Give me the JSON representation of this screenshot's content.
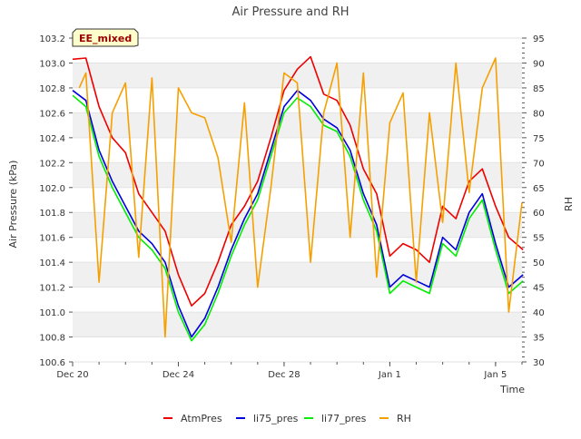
{
  "chart_data": {
    "type": "line",
    "title": "Air Pressure and RH",
    "xlabel": "Time",
    "ylabel": "Air Pressure (kPa)",
    "y2label": "RH",
    "annotation": "EE_mixed",
    "x_unit": "day",
    "x_ticks": [
      {
        "label": "Dec 20",
        "value": "2023-12-20"
      },
      {
        "label": "Dec 24",
        "value": "2023-12-24"
      },
      {
        "label": "Dec 28",
        "value": "2023-12-28"
      },
      {
        "label": "Jan 1",
        "value": "2024-01-01"
      },
      {
        "label": "Jan 5",
        "value": "2024-01-05"
      }
    ],
    "xlim": [
      "2023-12-20",
      "2024-01-06"
    ],
    "ylim": [
      100.6,
      103.2
    ],
    "y_ticks": [
      100.6,
      100.8,
      101.0,
      101.2,
      101.4,
      101.6,
      101.8,
      102.0,
      102.2,
      102.4,
      102.6,
      102.8,
      103.0,
      103.2
    ],
    "y2lim": [
      30,
      95
    ],
    "y2_ticks": [
      30,
      35,
      40,
      45,
      50,
      55,
      60,
      65,
      70,
      75,
      80,
      85,
      90,
      95
    ],
    "grid_bands": true,
    "legend_placement": "bottom-center",
    "series": [
      {
        "name": "AtmPres",
        "color": "#ee0000",
        "axis": "left",
        "x": [
          "2023-12-20",
          "2023-12-20T12:00",
          "2023-12-21",
          "2023-12-21T12:00",
          "2023-12-22",
          "2023-12-22T12:00",
          "2023-12-23",
          "2023-12-23T12:00",
          "2023-12-24",
          "2023-12-24T12:00",
          "2023-12-25",
          "2023-12-25T12:00",
          "2023-12-26",
          "2023-12-26T12:00",
          "2023-12-27",
          "2023-12-27T12:00",
          "2023-12-28",
          "2023-12-28T12:00",
          "2023-12-29",
          "2023-12-29T12:00",
          "2023-12-30",
          "2023-12-30T12:00",
          "2023-12-31",
          "2023-12-31T12:00",
          "2024-01-01",
          "2024-01-01T12:00",
          "2024-01-02",
          "2024-01-02T12:00",
          "2024-01-03",
          "2024-01-03T12:00",
          "2024-01-04",
          "2024-01-04T12:00",
          "2024-01-05",
          "2024-01-05T12:00",
          "2024-01-06T01:00"
        ],
        "y": [
          103.03,
          103.04,
          102.65,
          102.4,
          102.28,
          101.95,
          101.8,
          101.65,
          101.3,
          101.05,
          101.15,
          101.4,
          101.7,
          101.85,
          102.05,
          102.4,
          102.78,
          102.95,
          103.05,
          102.75,
          102.7,
          102.5,
          102.15,
          101.95,
          101.45,
          101.55,
          101.5,
          101.4,
          101.85,
          101.75,
          102.05,
          102.15,
          101.85,
          101.6,
          101.5
        ]
      },
      {
        "name": "li75_pres",
        "color": "#0000dd",
        "axis": "left",
        "x": [
          "2023-12-20",
          "2023-12-20T12:00",
          "2023-12-21",
          "2023-12-21T12:00",
          "2023-12-22",
          "2023-12-22T12:00",
          "2023-12-23",
          "2023-12-23T12:00",
          "2023-12-24",
          "2023-12-24T12:00",
          "2023-12-25",
          "2023-12-25T12:00",
          "2023-12-26",
          "2023-12-26T12:00",
          "2023-12-27",
          "2023-12-27T12:00",
          "2023-12-28",
          "2023-12-28T12:00",
          "2023-12-29",
          "2023-12-29T12:00",
          "2023-12-30",
          "2023-12-30T12:00",
          "2023-12-31",
          "2023-12-31T12:00",
          "2024-01-01",
          "2024-01-01T12:00",
          "2024-01-02",
          "2024-01-02T12:00",
          "2024-01-03",
          "2024-01-03T12:00",
          "2024-01-04",
          "2024-01-04T12:00",
          "2024-01-05",
          "2024-01-05T12:00",
          "2024-01-06T01:00"
        ],
        "y": [
          102.78,
          102.7,
          102.3,
          102.05,
          101.85,
          101.65,
          101.55,
          101.4,
          101.05,
          100.8,
          100.95,
          101.2,
          101.5,
          101.75,
          101.95,
          102.3,
          102.65,
          102.78,
          102.7,
          102.55,
          102.48,
          102.3,
          101.95,
          101.7,
          101.2,
          101.3,
          101.25,
          101.2,
          101.6,
          101.5,
          101.8,
          101.95,
          101.55,
          101.2,
          101.3
        ]
      },
      {
        "name": "li77_pres",
        "color": "#00ee00",
        "axis": "left",
        "x": [
          "2023-12-20",
          "2023-12-20T12:00",
          "2023-12-21",
          "2023-12-21T12:00",
          "2023-12-22",
          "2023-12-22T12:00",
          "2023-12-23",
          "2023-12-23T12:00",
          "2023-12-24",
          "2023-12-24T12:00",
          "2023-12-25",
          "2023-12-25T12:00",
          "2023-12-26",
          "2023-12-26T12:00",
          "2023-12-27",
          "2023-12-27T12:00",
          "2023-12-28",
          "2023-12-28T12:00",
          "2023-12-29",
          "2023-12-29T12:00",
          "2023-12-30",
          "2023-12-30T12:00",
          "2023-12-31",
          "2023-12-31T12:00",
          "2024-01-01",
          "2024-01-01T12:00",
          "2024-01-02",
          "2024-01-02T12:00",
          "2024-01-03",
          "2024-01-03T12:00",
          "2024-01-04",
          "2024-01-04T12:00",
          "2024-01-05",
          "2024-01-05T12:00",
          "2024-01-06T01:00"
        ],
        "y": [
          102.74,
          102.65,
          102.25,
          102.0,
          101.8,
          101.6,
          101.5,
          101.35,
          101.0,
          100.77,
          100.9,
          101.15,
          101.45,
          101.7,
          101.9,
          102.25,
          102.6,
          102.72,
          102.65,
          102.5,
          102.45,
          102.25,
          101.9,
          101.65,
          101.15,
          101.25,
          101.2,
          101.15,
          101.55,
          101.45,
          101.75,
          101.9,
          101.5,
          101.15,
          101.25
        ]
      },
      {
        "name": "RH",
        "color": "#f5a000",
        "axis": "right",
        "x": [
          "2023-12-20T06:00",
          "2023-12-20T12:00",
          "2023-12-21",
          "2023-12-21T12:00",
          "2023-12-22",
          "2023-12-22T12:00",
          "2023-12-23",
          "2023-12-23T12:00",
          "2023-12-24",
          "2023-12-24T12:00",
          "2023-12-25",
          "2023-12-25T12:00",
          "2023-12-26",
          "2023-12-26T12:00",
          "2023-12-27",
          "2023-12-27T12:00",
          "2023-12-28",
          "2023-12-28T12:00",
          "2023-12-29",
          "2023-12-29T12:00",
          "2023-12-30",
          "2023-12-30T12:00",
          "2023-12-31",
          "2023-12-31T12:00",
          "2024-01-01",
          "2024-01-01T12:00",
          "2024-01-02",
          "2024-01-02T12:00",
          "2024-01-03",
          "2024-01-03T12:00",
          "2024-01-04",
          "2024-01-04T12:00",
          "2024-01-05",
          "2024-01-05T12:00",
          "2024-01-06"
        ],
        "y": [
          85,
          88,
          46,
          80,
          86,
          51,
          87,
          35,
          85,
          80,
          79,
          71,
          54,
          82,
          45,
          65,
          88,
          86,
          50,
          80,
          90,
          55,
          88,
          47,
          78,
          84,
          46,
          80,
          58,
          90,
          64,
          85,
          91,
          40,
          62
        ]
      }
    ]
  }
}
